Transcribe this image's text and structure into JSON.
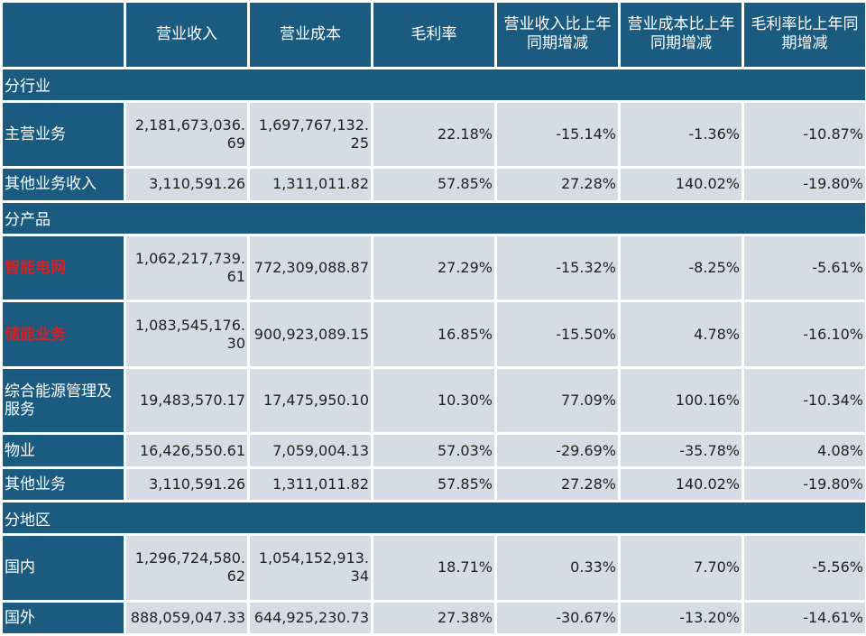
{
  "header": {
    "corner": "",
    "columns": [
      "营业收入",
      "营业成本",
      "毛利率",
      "营业收入比上年同期增减",
      "营业成本比上年同期增减",
      "毛利率比上年同期增减"
    ]
  },
  "sections": [
    {
      "title": "分行业",
      "rows": [
        {
          "label": "主营业务",
          "values": [
            "2,181,673,036.69",
            "1,697,767,132.25",
            "22.18%",
            "-15.14%",
            "-1.36%",
            "-10.87%"
          ]
        },
        {
          "label": "其他业务收入",
          "values": [
            "3,110,591.26",
            "1,311,011.82",
            "57.85%",
            "27.28%",
            "140.02%",
            "-19.80%"
          ]
        }
      ]
    },
    {
      "title": "分产品",
      "rows": [
        {
          "label": "智能电网",
          "highlight": true,
          "values": [
            "1,062,217,739.61",
            "772,309,088.87",
            "27.29%",
            "-15.32%",
            "-8.25%",
            "-5.61%"
          ]
        },
        {
          "label": "储能业务",
          "highlight": true,
          "values": [
            "1,083,545,176.30",
            "900,923,089.15",
            "16.85%",
            "-15.50%",
            "4.78%",
            "-16.10%"
          ]
        },
        {
          "label": "综合能源管理及服务",
          "values": [
            "19,483,570.17",
            "17,475,950.10",
            "10.30%",
            "77.09%",
            "100.16%",
            "-10.34%"
          ]
        },
        {
          "label": "物业",
          "values": [
            "16,426,550.61",
            "7,059,004.13",
            "57.03%",
            "-29.69%",
            "-35.78%",
            "4.08%"
          ]
        },
        {
          "label": "其他业务",
          "values": [
            "3,110,591.26",
            "1,311,011.82",
            "57.85%",
            "27.28%",
            "140.02%",
            "-19.80%"
          ]
        }
      ]
    },
    {
      "title": "分地区",
      "rows": [
        {
          "label": "国内",
          "values": [
            "1,296,724,580.62",
            "1,054,152,913.34",
            "18.71%",
            "0.33%",
            "7.70%",
            "-5.56%"
          ]
        },
        {
          "label": "国外",
          "values": [
            "888,059,047.33",
            "644,925,230.73",
            "27.38%",
            "-30.67%",
            "-13.20%",
            "-14.61%"
          ]
        }
      ]
    }
  ],
  "colors": {
    "header_bg": "#1b5b80",
    "cell_bg": "#d6dbe4",
    "highlight_text": "#d51f26"
  }
}
